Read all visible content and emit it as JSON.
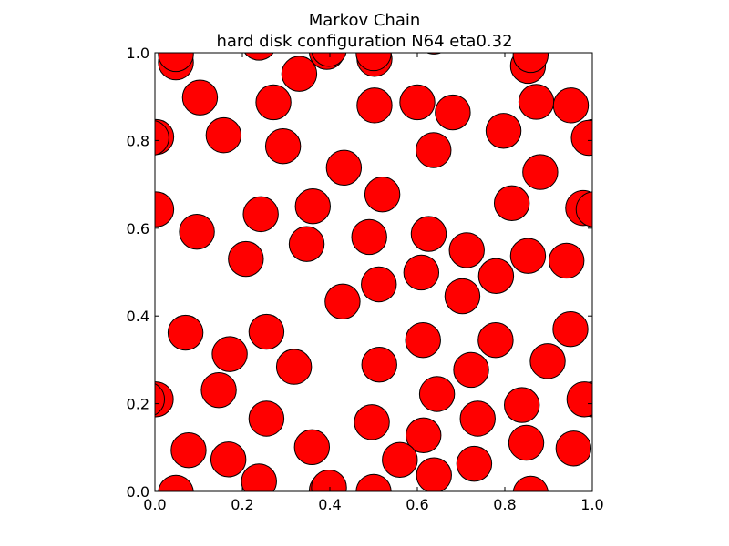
{
  "chart_data": {
    "type": "scatter",
    "title_lines": [
      "Markov Chain",
      "hard disk configuration N64 eta0.32"
    ],
    "xlim": [
      0.0,
      1.0
    ],
    "ylim": [
      0.0,
      1.0
    ],
    "x_ticks": [
      0.0,
      0.2,
      0.4,
      0.6,
      0.8,
      1.0
    ],
    "y_ticks": [
      0.0,
      0.2,
      0.4,
      0.6,
      0.8,
      1.0
    ],
    "x_tick_labels": [
      "0.0",
      "0.2",
      "0.4",
      "0.6",
      "0.8",
      "1.0"
    ],
    "y_tick_labels": [
      "0.0",
      "0.2",
      "0.4",
      "0.6",
      "0.8",
      "1.0"
    ],
    "grid": false,
    "disk_radius": 0.04,
    "disk_fill": "#ff0000",
    "disk_edge": "#000000",
    "periodic": true,
    "disks": [
      [
        0.048,
        0.978
      ],
      [
        0.103,
        0.898
      ],
      [
        0.157,
        0.812
      ],
      [
        0.003,
        0.808
      ],
      [
        0.271,
        0.887
      ],
      [
        0.293,
        0.787
      ],
      [
        0.33,
        0.952
      ],
      [
        0.393,
        1.002
      ],
      [
        0.502,
        0.986
      ],
      [
        0.502,
        0.88
      ],
      [
        0.6,
        0.887
      ],
      [
        0.681,
        0.864
      ],
      [
        0.637,
        0.778
      ],
      [
        0.797,
        0.822
      ],
      [
        0.872,
        0.888
      ],
      [
        0.951,
        0.88
      ],
      [
        0.853,
        0.97
      ],
      [
        0.992,
        0.806
      ],
      [
        0.881,
        0.728
      ],
      [
        0.816,
        0.657
      ],
      [
        0.979,
        0.646
      ],
      [
        0.432,
        0.738
      ],
      [
        0.52,
        0.677
      ],
      [
        0.361,
        0.65
      ],
      [
        0.242,
        0.632
      ],
      [
        0.003,
        0.643
      ],
      [
        0.096,
        0.592
      ],
      [
        0.208,
        0.53
      ],
      [
        0.347,
        0.564
      ],
      [
        0.49,
        0.58
      ],
      [
        0.626,
        0.587
      ],
      [
        0.713,
        0.55
      ],
      [
        0.853,
        0.537
      ],
      [
        0.941,
        0.526
      ],
      [
        0.609,
        0.499
      ],
      [
        0.512,
        0.472
      ],
      [
        0.78,
        0.491
      ],
      [
        0.703,
        0.445
      ],
      [
        0.429,
        0.433
      ],
      [
        0.07,
        0.362
      ],
      [
        0.255,
        0.364
      ],
      [
        0.171,
        0.313
      ],
      [
        0.318,
        0.284
      ],
      [
        0.513,
        0.289
      ],
      [
        0.613,
        0.345
      ],
      [
        0.779,
        0.345
      ],
      [
        0.95,
        0.37
      ],
      [
        0.898,
        0.297
      ],
      [
        0.723,
        0.277
      ],
      [
        0.146,
        0.231
      ],
      [
        0.002,
        0.21
      ],
      [
        0.255,
        0.166
      ],
      [
        0.645,
        0.222
      ],
      [
        0.738,
        0.166
      ],
      [
        0.839,
        0.197
      ],
      [
        0.982,
        0.21
      ],
      [
        0.496,
        0.158
      ],
      [
        0.614,
        0.128
      ],
      [
        0.077,
        0.094
      ],
      [
        0.168,
        0.073
      ],
      [
        0.359,
        0.101
      ],
      [
        0.56,
        0.072
      ],
      [
        0.73,
        0.063
      ],
      [
        0.849,
        0.111
      ],
      [
        0.957,
        0.098
      ],
      [
        0.238,
        0.023
      ],
      [
        0.398,
        0.009
      ],
      [
        0.5,
        -0.001
      ],
      [
        0.638,
        0.037
      ],
      [
        0.048,
        -0.003
      ],
      [
        0.859,
        -0.005
      ]
    ]
  }
}
